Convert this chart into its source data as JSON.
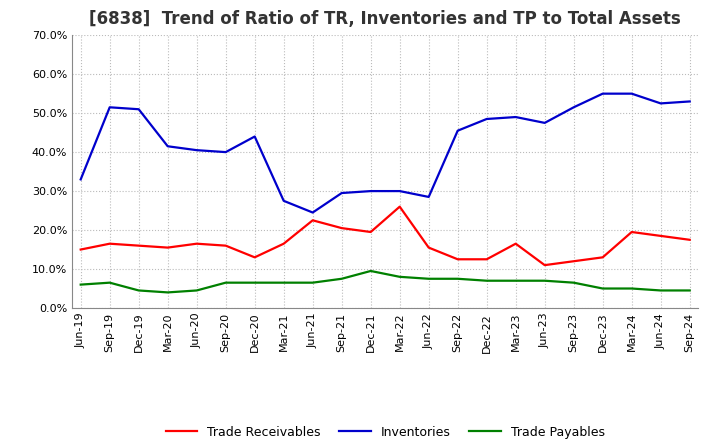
{
  "title": "[6838]  Trend of Ratio of TR, Inventories and TP to Total Assets",
  "x_labels": [
    "Jun-19",
    "Sep-19",
    "Dec-19",
    "Mar-20",
    "Jun-20",
    "Sep-20",
    "Dec-20",
    "Mar-21",
    "Jun-21",
    "Sep-21",
    "Dec-21",
    "Mar-22",
    "Jun-22",
    "Sep-22",
    "Dec-22",
    "Mar-23",
    "Jun-23",
    "Sep-23",
    "Dec-23",
    "Mar-24",
    "Jun-24",
    "Sep-24"
  ],
  "trade_receivables": [
    15.0,
    16.5,
    16.0,
    15.5,
    16.5,
    16.0,
    13.0,
    16.5,
    22.5,
    20.5,
    19.5,
    26.0,
    15.5,
    12.5,
    12.5,
    16.5,
    11.0,
    12.0,
    13.0,
    19.5,
    18.5,
    17.5
  ],
  "inventories": [
    33.0,
    51.5,
    51.0,
    41.5,
    40.5,
    40.0,
    44.0,
    27.5,
    24.5,
    29.5,
    30.0,
    30.0,
    28.5,
    45.5,
    48.5,
    49.0,
    47.5,
    51.5,
    55.0,
    55.0,
    52.5,
    53.0
  ],
  "trade_payables": [
    6.0,
    6.5,
    4.5,
    4.0,
    4.5,
    6.5,
    6.5,
    6.5,
    6.5,
    7.5,
    9.5,
    8.0,
    7.5,
    7.5,
    7.0,
    7.0,
    7.0,
    6.5,
    5.0,
    5.0,
    4.5,
    4.5
  ],
  "tr_color": "#ff0000",
  "inv_color": "#0000cc",
  "tp_color": "#008000",
  "ylim": [
    0,
    70
  ],
  "yticks": [
    0,
    10,
    20,
    30,
    40,
    50,
    60,
    70
  ],
  "background_color": "#ffffff",
  "plot_bg_color": "#ffffff",
  "grid_color": "#bbbbbb",
  "title_fontsize": 12,
  "legend_fontsize": 9,
  "tick_fontsize": 8,
  "linewidth": 1.6
}
